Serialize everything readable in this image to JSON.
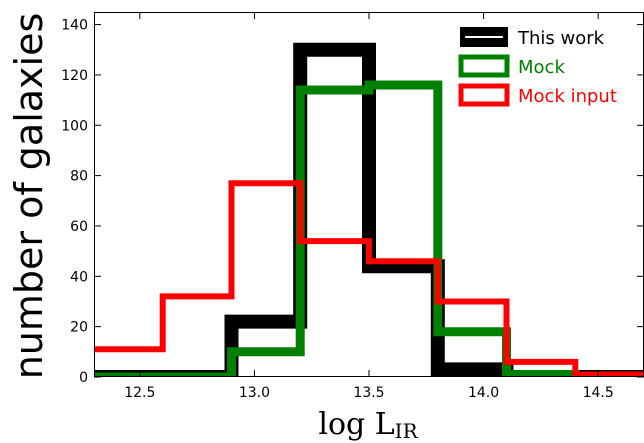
{
  "chart_data": {
    "type": "histogram",
    "xlabel": "log L",
    "xlabel_sub": "IR",
    "ylabel": "number of galaxies",
    "xlim": [
      12.3,
      14.7
    ],
    "ylim": [
      0,
      145
    ],
    "xticks": [
      12.5,
      13.0,
      13.5,
      14.0,
      14.5
    ],
    "xtick_labels": [
      "12.5",
      "13.0",
      "13.5",
      "14.0",
      "14.5"
    ],
    "yticks": [
      0,
      20,
      40,
      60,
      80,
      100,
      120,
      140
    ],
    "ytick_labels": [
      "0",
      "20",
      "40",
      "60",
      "80",
      "100",
      "120",
      "140"
    ],
    "grid": false,
    "legend_position": "top-right",
    "series": [
      {
        "name": "This work",
        "color": "#000000",
        "edges": [
          12.3,
          12.6,
          12.9,
          13.2,
          13.5,
          13.8,
          14.1,
          14.4,
          14.7
        ],
        "counts": [
          0,
          0,
          22,
          130,
          44,
          3,
          0,
          0
        ]
      },
      {
        "name": "Mock",
        "color": "#008000",
        "edges": [
          12.3,
          12.6,
          12.9,
          13.2,
          13.5,
          13.8,
          14.1,
          14.4,
          14.7
        ],
        "counts": [
          0,
          0,
          10,
          114,
          116,
          18,
          1,
          0
        ]
      },
      {
        "name": "Mock input",
        "color": "#ff0000",
        "edges": [
          12.3,
          12.6,
          12.9,
          13.2,
          13.5,
          13.8,
          14.1,
          14.4,
          14.7
        ],
        "counts": [
          11,
          32,
          77,
          54,
          46,
          30,
          6,
          1
        ]
      }
    ]
  }
}
